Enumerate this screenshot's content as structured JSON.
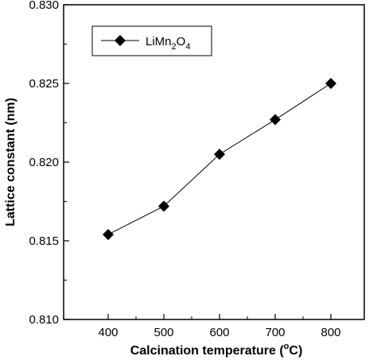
{
  "chart_data": {
    "type": "line",
    "x": [
      400,
      500,
      600,
      700,
      800
    ],
    "series": [
      {
        "name": "LiMn2O4",
        "values": [
          0.8154,
          0.8172,
          0.8205,
          0.8227,
          0.825
        ]
      }
    ],
    "legend": {
      "base": "LiMn",
      "sub1": "2",
      "mid": "O",
      "sub2": "4",
      "placement": "top-left"
    },
    "xlabel": {
      "text": "Calcination temperature (",
      "sup": "o",
      "unit": "C)"
    },
    "ylabel": "Lattice constant (nm)",
    "xlim": [
      320,
      860
    ],
    "ylim": [
      0.81,
      0.83
    ],
    "xticks": [
      "400",
      "500",
      "600",
      "700",
      "800"
    ],
    "yticks": [
      "0.810",
      "0.815",
      "0.820",
      "0.825",
      "0.830"
    ],
    "marker": "diamond",
    "grid": false,
    "colors": {
      "line": "#000000",
      "marker": "#000000"
    }
  }
}
